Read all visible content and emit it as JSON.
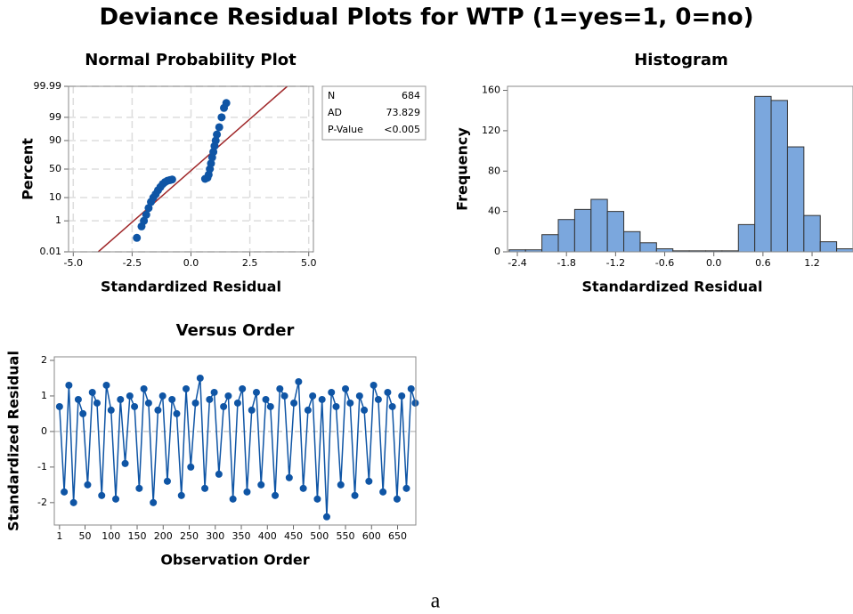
{
  "title": "Deviance Residual Plots for WTP (1=yes=1, 0=no)",
  "caption": "a",
  "chart_data": [
    {
      "type": "probability",
      "title": "Normal Probability Plot",
      "x_label": "Standardized Residual",
      "y_label": "Percent",
      "xlim": [
        -5.2,
        5.2
      ],
      "xticks": [
        {
          "value": -5,
          "label": "-5.0"
        },
        {
          "value": -2.5,
          "label": "-2.5"
        },
        {
          "value": 0,
          "label": "0.0"
        },
        {
          "value": 2.5,
          "label": "2.5"
        },
        {
          "value": 5,
          "label": "5.0"
        }
      ],
      "ylim": [
        0.01,
        99.99
      ],
      "yticks": [
        0.01,
        1,
        10,
        50,
        90,
        99,
        99.99
      ],
      "yscale": "probability",
      "grid": true,
      "color": "#0f55a5",
      "x": [
        -2.3,
        -2.1,
        -2.0,
        -1.9,
        -1.8,
        -1.7,
        -1.6,
        -1.5,
        -1.4,
        -1.3,
        -1.2,
        -1.1,
        -1.0,
        -0.9,
        -0.8,
        0.6,
        0.7,
        0.75,
        0.8,
        0.85,
        0.9,
        0.95,
        1.0,
        1.05,
        1.1,
        1.2,
        1.3,
        1.4,
        1.5
      ],
      "values": [
        0.1,
        0.5,
        1,
        2,
        4,
        7,
        10,
        13,
        17,
        21,
        25,
        28,
        30,
        31,
        32,
        33,
        35,
        40,
        50,
        60,
        70,
        78,
        85,
        90,
        94,
        97,
        99,
        99.7,
        99.85
      ],
      "fit_line": {
        "x": [
          -3.94,
          4.09
        ],
        "values": [
          0.01,
          99.99
        ],
        "color": "#a0282a"
      },
      "stats": {
        "labels": [
          "N",
          "AD",
          "P-Value"
        ],
        "values": [
          684,
          73.829,
          "<0.005"
        ]
      }
    },
    {
      "type": "histogram",
      "title": "Histogram",
      "x_label": "Standardized Residual",
      "y_label": "Frequency",
      "xlim": [
        -2.52,
        1.7
      ],
      "xticks": [
        -2.4,
        -1.8,
        -1.2,
        -0.6,
        {
          "value": 0,
          "label": "0.0"
        },
        0.6,
        1.2
      ],
      "ylim": [
        0,
        164
      ],
      "yticks": [
        0,
        40,
        80,
        120,
        160
      ],
      "color": "#7ba7dd",
      "bins": [
        -2.5,
        -2.3,
        -2.1,
        -1.9,
        -1.7,
        -1.5,
        -1.3,
        -1.1,
        -0.9,
        -0.7,
        -0.5,
        -0.3,
        -0.1,
        0.1,
        0.3,
        0.5,
        0.7,
        0.9,
        1.1,
        1.3,
        1.5,
        1.7
      ],
      "values": [
        2,
        2,
        17,
        32,
        42,
        52,
        40,
        20,
        9,
        3,
        1,
        1,
        1,
        1,
        27,
        154,
        150,
        104,
        36,
        10,
        3
      ]
    },
    {
      "type": "order",
      "title": "Versus Order",
      "x_label": "Observation Order",
      "y_label": "Standardized Residual",
      "xlim": [
        -9,
        685
      ],
      "xticks": [
        1,
        50,
        100,
        150,
        200,
        250,
        300,
        350,
        400,
        450,
        500,
        550,
        600,
        650
      ],
      "ylim": [
        -2.63,
        2.1
      ],
      "yticks": [
        -2,
        -1,
        0,
        1,
        2
      ],
      "reference_line": 0,
      "color": "#0f55a5",
      "x": [
        1,
        10,
        19,
        28,
        37,
        46,
        55,
        64,
        73,
        82,
        91,
        100,
        109,
        118,
        127,
        136,
        145,
        154,
        163,
        172,
        181,
        190,
        199,
        208,
        217,
        226,
        235,
        244,
        253,
        262,
        271,
        280,
        289,
        298,
        307,
        316,
        325,
        334,
        343,
        352,
        361,
        370,
        379,
        388,
        397,
        406,
        415,
        424,
        433,
        442,
        451,
        460,
        469,
        478,
        487,
        496,
        505,
        514,
        523,
        532,
        541,
        550,
        559,
        568,
        577,
        586,
        595,
        604,
        613,
        622,
        631,
        640,
        649,
        658,
        667,
        676,
        684
      ],
      "values": [
        0.7,
        -1.7,
        1.3,
        -2.0,
        0.9,
        0.5,
        -1.5,
        1.1,
        0.8,
        -1.8,
        1.3,
        0.6,
        -1.9,
        0.9,
        -0.9,
        1.0,
        0.7,
        -1.6,
        1.2,
        0.8,
        -2.0,
        0.6,
        1.0,
        -1.4,
        0.9,
        0.5,
        -1.8,
        1.2,
        -1.0,
        0.8,
        1.5,
        -1.6,
        0.9,
        1.1,
        -1.2,
        0.7,
        1.0,
        -1.9,
        0.8,
        1.2,
        -1.7,
        0.6,
        1.1,
        -1.5,
        0.9,
        0.7,
        -1.8,
        1.2,
        1.0,
        -1.3,
        0.8,
        1.4,
        -1.6,
        0.6,
        1.0,
        -1.9,
        0.9,
        -2.4,
        1.1,
        0.7,
        -1.5,
        1.2,
        0.8,
        -1.8,
        1.0,
        0.6,
        -1.4,
        1.3,
        0.9,
        -1.7,
        1.1,
        0.7,
        -1.9,
        1.0,
        -1.6,
        1.2,
        0.8
      ]
    }
  ]
}
